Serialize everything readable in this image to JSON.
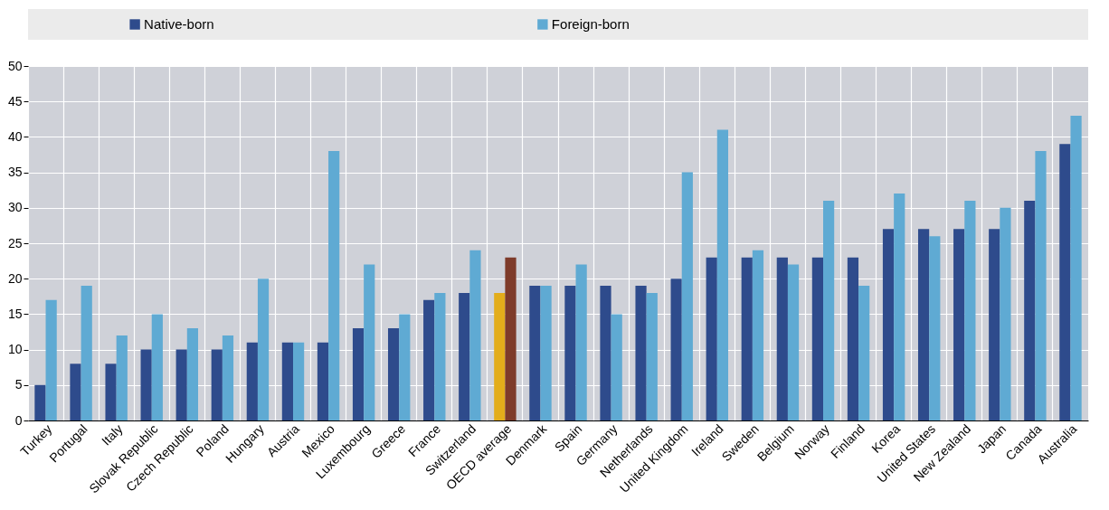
{
  "chart_data": {
    "type": "bar",
    "categories": [
      "Turkey",
      "Portugal",
      "Italy",
      "Slovak Republic",
      "Czech Republic",
      "Poland",
      "Hungary",
      "Austria",
      "Mexico",
      "Luxembourg",
      "Greece",
      "France",
      "Switzerland",
      "OECD average",
      "Denmark",
      "Spain",
      "Germany",
      "Netherlands",
      "United Kingdom",
      "Ireland",
      "Sweden",
      "Belgium",
      "Norway",
      "Finland",
      "Korea",
      "United States",
      "New Zealand",
      "Japan",
      "Canada",
      "Australia"
    ],
    "series": [
      {
        "name": "Native-born",
        "color": "#2e4b8c",
        "colors": [
          "#2e4b8c",
          "#2e4b8c",
          "#2e4b8c",
          "#2e4b8c",
          "#2e4b8c",
          "#2e4b8c",
          "#2e4b8c",
          "#2e4b8c",
          "#2e4b8c",
          "#2e4b8c",
          "#2e4b8c",
          "#2e4b8c",
          "#2e4b8c",
          "#e3ad1b",
          "#2e4b8c",
          "#2e4b8c",
          "#2e4b8c",
          "#2e4b8c",
          "#2e4b8c",
          "#2e4b8c",
          "#2e4b8c",
          "#2e4b8c",
          "#2e4b8c",
          "#2e4b8c",
          "#2e4b8c",
          "#2e4b8c",
          "#2e4b8c",
          "#2e4b8c",
          "#2e4b8c",
          "#2e4b8c"
        ],
        "values": [
          5,
          8,
          8,
          10,
          10,
          10,
          11,
          11,
          11,
          13,
          13,
          17,
          18,
          18,
          19,
          19,
          19,
          19,
          20,
          23,
          23,
          23,
          23,
          23,
          27,
          27,
          27,
          27,
          31,
          39
        ]
      },
      {
        "name": "Foreign-born",
        "color": "#5faad3",
        "colors": [
          "#5faad3",
          "#5faad3",
          "#5faad3",
          "#5faad3",
          "#5faad3",
          "#5faad3",
          "#5faad3",
          "#5faad3",
          "#5faad3",
          "#5faad3",
          "#5faad3",
          "#5faad3",
          "#5faad3",
          "#7e3b2a",
          "#5faad3",
          "#5faad3",
          "#5faad3",
          "#5faad3",
          "#5faad3",
          "#5faad3",
          "#5faad3",
          "#5faad3",
          "#5faad3",
          "#5faad3",
          "#5faad3",
          "#5faad3",
          "#5faad3",
          "#5faad3",
          "#5faad3",
          "#5faad3"
        ],
        "values": [
          17,
          19,
          12,
          15,
          13,
          12,
          20,
          11,
          38,
          22,
          15,
          18,
          24,
          23,
          19,
          22,
          15,
          18,
          35,
          41,
          24,
          22,
          31,
          19,
          32,
          26,
          31,
          30,
          38,
          43
        ]
      }
    ],
    "ylim": [
      0,
      50
    ],
    "yticks": [
      0,
      5,
      10,
      15,
      20,
      25,
      30,
      35,
      40,
      45,
      50
    ],
    "grid": true,
    "legend": "top"
  }
}
